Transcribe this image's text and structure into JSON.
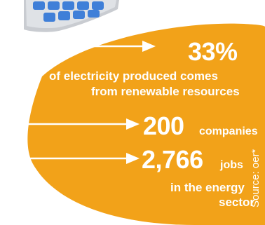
{
  "stats": [
    {
      "value": "33%",
      "description_line1": "of electricity produced comes",
      "description_line2": "from renewable resources"
    },
    {
      "value": "200",
      "unit": "companies"
    },
    {
      "value": "2,766",
      "unit": "jobs",
      "description_line1": "in the energy",
      "description_line2": "sector"
    }
  ],
  "source": "Source: oer*",
  "colors": {
    "blob": "#f2a219",
    "text": "#ffffff",
    "panel_cell": "#3f7fd8",
    "panel_frame": "#c9ccd1"
  },
  "icons": [
    "solar-panel-icon",
    "arrow-right-icon"
  ]
}
